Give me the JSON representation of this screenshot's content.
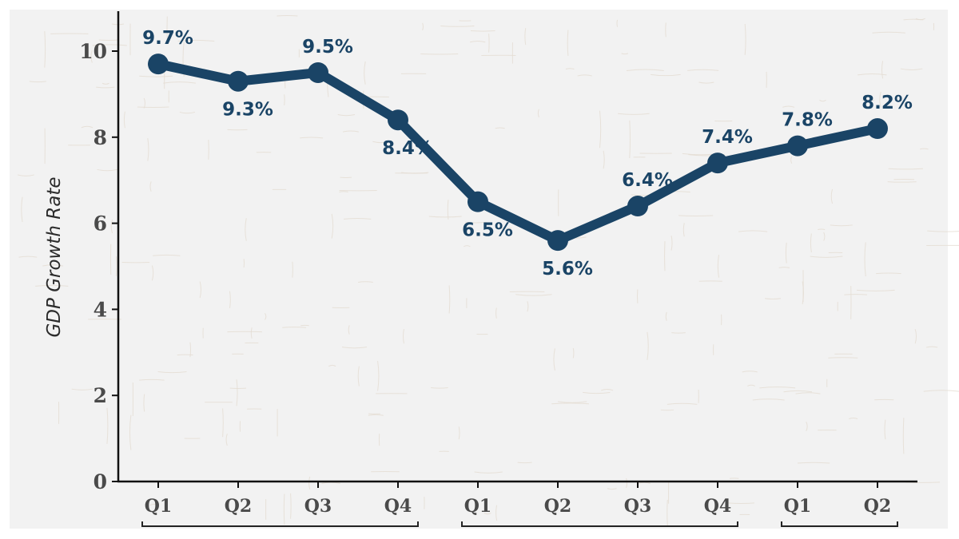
{
  "chart_data": {
    "type": "line",
    "categories": [
      "Q1",
      "Q2",
      "Q3",
      "Q4",
      "Q1",
      "Q2",
      "Q3",
      "Q4",
      "Q1",
      "Q2"
    ],
    "series": [
      {
        "values": [
          9.7,
          9.3,
          9.5,
          8.4,
          6.5,
          5.6,
          6.4,
          7.4,
          7.8,
          8.2
        ],
        "data_labels": [
          "9.7%",
          "9.3%",
          "9.5%",
          "8.4%",
          "6.5%",
          "5.6%",
          "6.4%",
          "7.4%",
          "7.8%",
          "8.2%"
        ],
        "label_positions": [
          "above",
          "below",
          "above",
          "below",
          "below",
          "below",
          "above",
          "above",
          "above",
          "above"
        ]
      }
    ],
    "title": "",
    "xlabel": "",
    "ylabel": "GDP Growth Rate",
    "ylim": [
      0,
      11
    ],
    "yticks": [
      0,
      2,
      4,
      6,
      8,
      10
    ],
    "grid": false,
    "legend": "none",
    "group_brackets": [
      {
        "label": "",
        "span": [
          0,
          3
        ]
      },
      {
        "label": "",
        "span": [
          4,
          7
        ]
      },
      {
        "label": "",
        "span": [
          8,
          9
        ]
      }
    ]
  },
  "colors": {
    "line": "#1a4466",
    "marker": "#1a4466",
    "data_label": "#1a4466",
    "axis": "#111111",
    "tick_label": "#4a4a4a",
    "background": "#f2f2f2"
  }
}
